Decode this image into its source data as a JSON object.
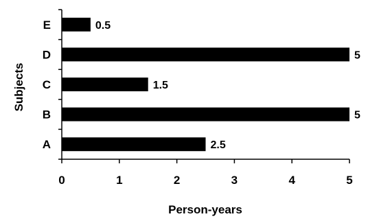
{
  "chart_data": {
    "type": "bar",
    "orientation": "horizontal",
    "categories": [
      "A",
      "B",
      "C",
      "D",
      "E"
    ],
    "values": [
      2.5,
      5,
      1.5,
      5,
      0.5
    ],
    "data_labels": [
      "2.5",
      "5",
      "1.5",
      "5",
      "0.5"
    ],
    "title": "",
    "xlabel": "Person-years",
    "ylabel": "Subjects",
    "xlim": [
      0,
      5
    ],
    "xticks": [
      0,
      1,
      2,
      3,
      4,
      5
    ],
    "grid": false,
    "legend": "none",
    "bar_color": "#000000"
  }
}
